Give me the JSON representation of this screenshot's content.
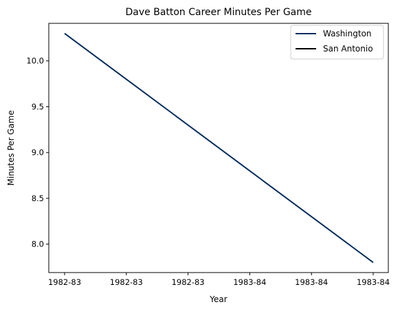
{
  "chart_data": {
    "type": "line",
    "title": "Dave Batton Career Minutes Per Game",
    "xlabel": "Year",
    "ylabel": "Minutes Per Game",
    "x_tick_labels": [
      "1982-83",
      "1982-83",
      "1982-83",
      "1983-84",
      "1983-84",
      "1983-84"
    ],
    "x_range": [
      0,
      1
    ],
    "y_ticks": [
      8.0,
      8.5,
      9.0,
      9.5,
      10.0
    ],
    "y_tick_labels": [
      "8.0",
      "8.5",
      "9.0",
      "9.5",
      "10.0"
    ],
    "ylim": [
      7.69,
      10.41
    ],
    "grid": false,
    "legend_position": "top-right",
    "series": [
      {
        "name": "Washington",
        "color": "#002b5c",
        "x": [
          0,
          1
        ],
        "y": [
          10.3,
          7.8
        ]
      },
      {
        "name": "San Antonio",
        "color": "#000000",
        "x": [],
        "y": []
      }
    ]
  }
}
